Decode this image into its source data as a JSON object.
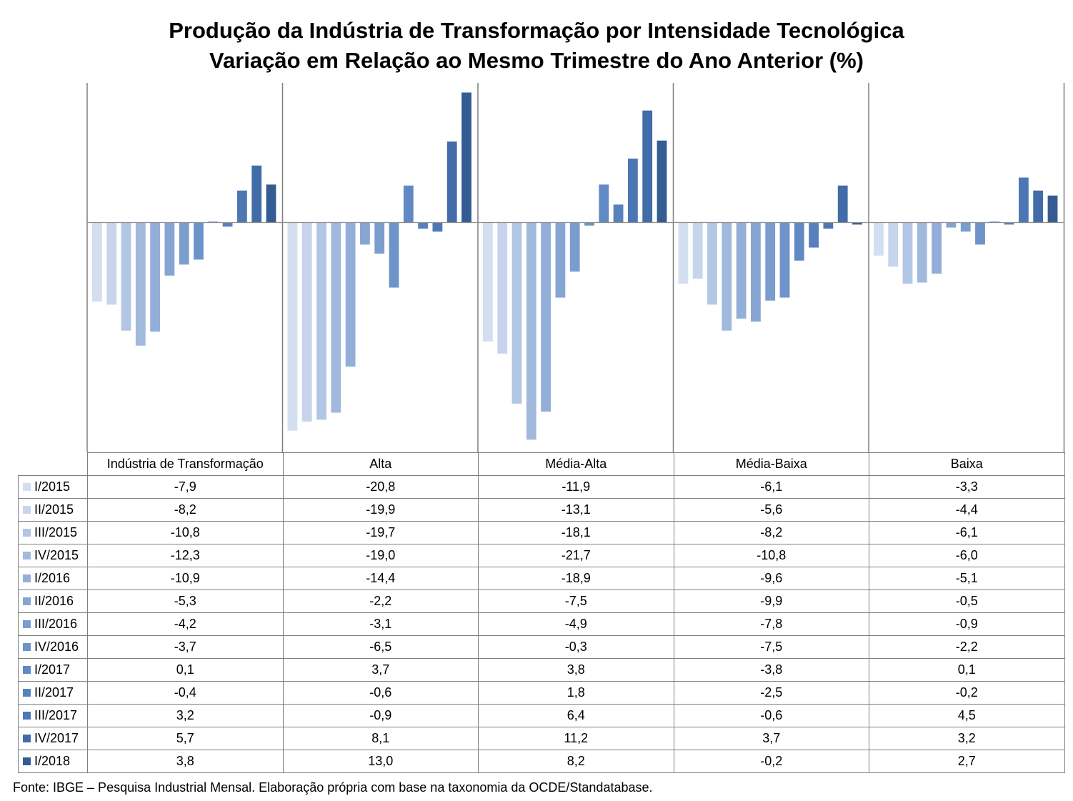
{
  "title_line1": "Produção da Indústria de Transformação por Intensidade Tecnológica",
  "title_line2": "Variação em Relação ao Mesmo Trimestre do Ano Anterior (%)",
  "source": "Fonte: IBGE – Pesquisa Industrial Mensal. Elaboração própria com base na taxonomia da OCDE/Standatabase.",
  "chart_data": {
    "type": "bar",
    "title": "Produção da Indústria de Transformação por Intensidade Tecnológica — Variação em Relação ao Mesmo Trimestre do Ano Anterior (%)",
    "categories": [
      "Indústria de Transformação",
      "Alta",
      "Média-Alta",
      "Média-Baixa",
      "Baixa"
    ],
    "series": [
      {
        "name": "I/2015",
        "color": "#d3dff1",
        "values": [
          -7.9,
          -20.8,
          -11.9,
          -6.1,
          -3.3
        ]
      },
      {
        "name": "II/2015",
        "color": "#c6d5ec",
        "values": [
          -8.2,
          -19.9,
          -13.1,
          -5.6,
          -4.4
        ]
      },
      {
        "name": "III/2015",
        "color": "#b2c6e5",
        "values": [
          -10.8,
          -19.7,
          -18.1,
          -8.2,
          -6.1
        ]
      },
      {
        "name": "IV/2015",
        "color": "#a1b9dd",
        "values": [
          -12.3,
          -19.0,
          -21.7,
          -10.8,
          -6.0
        ]
      },
      {
        "name": "I/2016",
        "color": "#93aed8",
        "values": [
          -10.9,
          -14.4,
          -18.9,
          -9.6,
          -5.1
        ]
      },
      {
        "name": "II/2016",
        "color": "#86a5d3",
        "values": [
          -5.3,
          -2.2,
          -7.5,
          -9.9,
          -0.5
        ]
      },
      {
        "name": "III/2016",
        "color": "#7b9dce",
        "values": [
          -4.2,
          -3.1,
          -4.9,
          -7.8,
          -0.9
        ]
      },
      {
        "name": "IV/2016",
        "color": "#6d93c9",
        "values": [
          -3.7,
          -6.5,
          -0.3,
          -7.5,
          -2.2
        ]
      },
      {
        "name": "I/2017",
        "color": "#6189c3",
        "values": [
          0.1,
          3.7,
          3.8,
          -3.8,
          0.1
        ]
      },
      {
        "name": "II/2017",
        "color": "#5780bd",
        "values": [
          -0.4,
          -0.6,
          1.8,
          -2.5,
          -0.2
        ]
      },
      {
        "name": "III/2017",
        "color": "#4d77b4",
        "values": [
          3.2,
          -0.9,
          6.4,
          -0.6,
          4.5
        ]
      },
      {
        "name": "IV/2017",
        "color": "#416ca8",
        "values": [
          5.7,
          8.1,
          11.2,
          3.7,
          3.2
        ]
      },
      {
        "name": "I/2018",
        "color": "#355c92",
        "values": [
          3.8,
          13.0,
          8.2,
          -0.2,
          2.7
        ]
      }
    ],
    "table_values": [
      [
        "-7,9",
        "-20,8",
        "-11,9",
        "-6,1",
        "-3,3"
      ],
      [
        "-8,2",
        "-19,9",
        "-13,1",
        "-5,6",
        "-4,4"
      ],
      [
        "-10,8",
        "-19,7",
        "-18,1",
        "-8,2",
        "-6,1"
      ],
      [
        "-12,3",
        "-19,0",
        "-21,7",
        "-10,8",
        "-6,0"
      ],
      [
        "-10,9",
        "-14,4",
        "-18,9",
        "-9,6",
        "-5,1"
      ],
      [
        "-5,3",
        "-2,2",
        "-7,5",
        "-9,9",
        "-0,5"
      ],
      [
        "-4,2",
        "-3,1",
        "-4,9",
        "-7,8",
        "-0,9"
      ],
      [
        "-3,7",
        "-6,5",
        "-0,3",
        "-7,5",
        "-2,2"
      ],
      [
        "0,1",
        "3,7",
        "3,8",
        "-3,8",
        "0,1"
      ],
      [
        "-0,4",
        "-0,6",
        "1,8",
        "-2,5",
        "-0,2"
      ],
      [
        "3,2",
        "-0,9",
        "6,4",
        "-0,6",
        "4,5"
      ],
      [
        "5,7",
        "8,1",
        "11,2",
        "3,7",
        "3,2"
      ],
      [
        "3,8",
        "13,0",
        "8,2",
        "-0,2",
        "2,7"
      ]
    ],
    "ylim": [
      -23,
      14
    ],
    "legend": "data table below chart",
    "grid": false
  }
}
